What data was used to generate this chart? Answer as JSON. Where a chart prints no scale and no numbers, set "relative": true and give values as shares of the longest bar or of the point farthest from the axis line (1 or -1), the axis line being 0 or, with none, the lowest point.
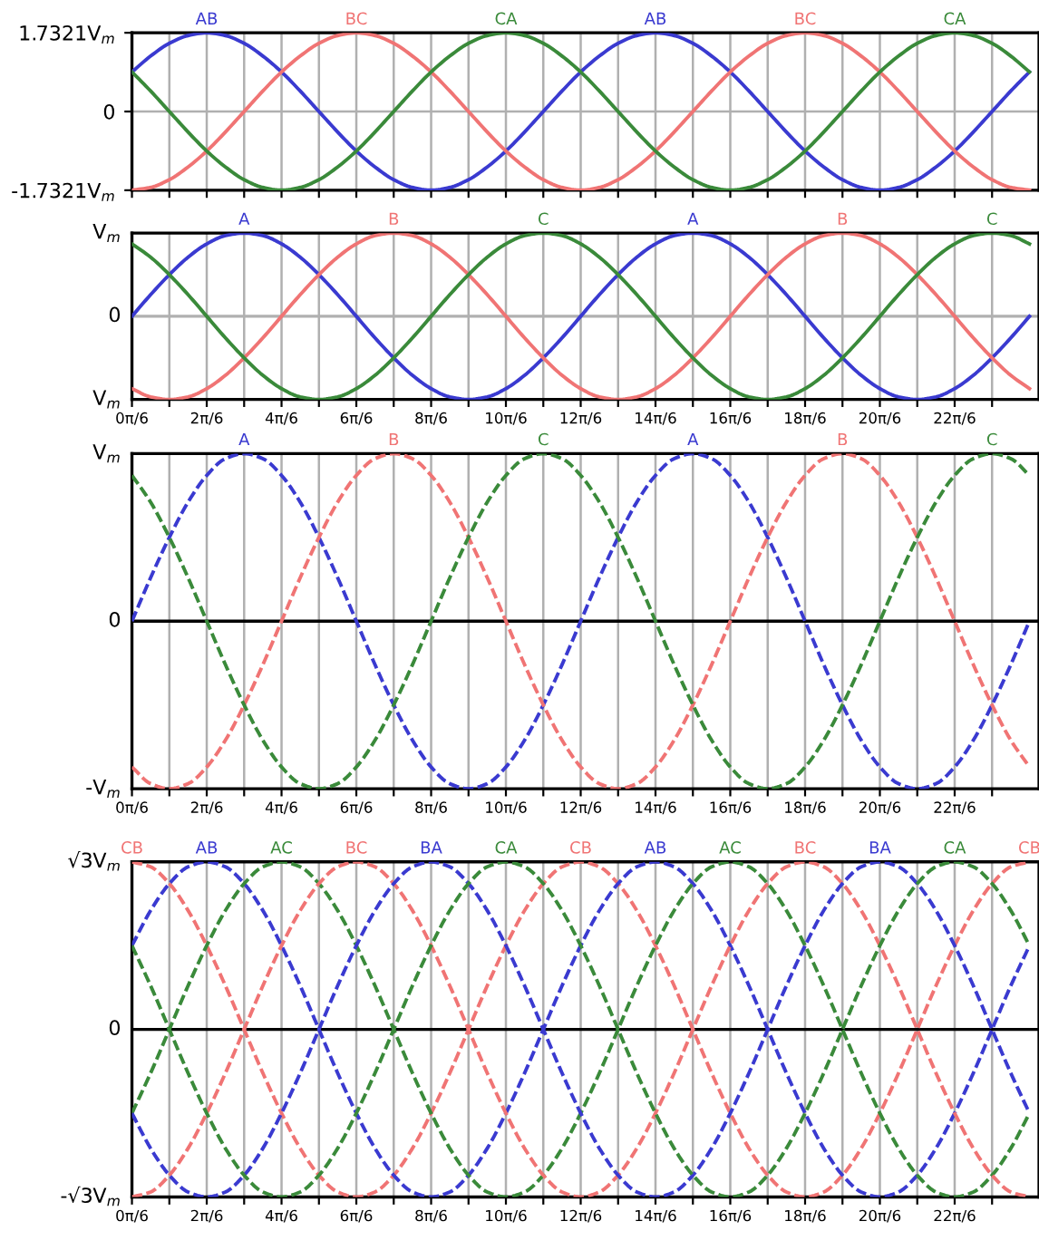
{
  "chart_data": [
    {
      "type": "line",
      "line_style": "solid",
      "grid": true,
      "tick_labels": "y",
      "x": [
        0,
        0.2618,
        0.5236,
        0.7854,
        1.0472,
        1.309,
        1.5708,
        1.8326,
        2.0944,
        2.3562,
        2.618,
        2.8798,
        3.1416,
        3.4034,
        3.6652,
        3.927,
        4.1888,
        4.4506,
        4.7124,
        4.9742,
        5.236,
        5.4978,
        5.7596,
        6.0214,
        6.2832,
        6.545,
        6.8068,
        7.0686,
        7.3304,
        7.5922,
        7.854,
        8.1158,
        8.3776,
        8.6394,
        8.9012,
        9.163,
        9.4248,
        9.6866,
        9.9484,
        10.2102,
        10.472,
        10.7338,
        10.9956,
        11.2574,
        11.5192,
        11.781,
        12.0428,
        12.3046,
        12.5664
      ],
      "xlim": [
        0,
        12.7
      ],
      "ylim": [
        -1.7321,
        1.7321
      ],
      "xticks": [
        {
          "value": 0,
          "label": null
        },
        {
          "value": 0.5236,
          "label": null
        },
        {
          "value": 1.0472,
          "label": null
        },
        {
          "value": 1.5708,
          "label": null
        },
        {
          "value": 2.0944,
          "label": null
        },
        {
          "value": 2.618,
          "label": null
        },
        {
          "value": 3.1416,
          "label": null
        },
        {
          "value": 3.6652,
          "label": null
        },
        {
          "value": 4.1888,
          "label": null
        },
        {
          "value": 4.7124,
          "label": null
        },
        {
          "value": 5.236,
          "label": null
        },
        {
          "value": 5.7596,
          "label": null
        },
        {
          "value": 6.2832,
          "label": null
        },
        {
          "value": 6.8068,
          "label": null
        },
        {
          "value": 7.3304,
          "label": null
        },
        {
          "value": 7.854,
          "label": null
        },
        {
          "value": 8.3776,
          "label": null
        },
        {
          "value": 8.9012,
          "label": null
        },
        {
          "value": 9.4248,
          "label": null
        },
        {
          "value": 9.9484,
          "label": null
        },
        {
          "value": 10.472,
          "label": null
        },
        {
          "value": 10.9956,
          "label": null
        },
        {
          "value": 11.5192,
          "label": null
        },
        {
          "value": 12.0428,
          "label": null
        }
      ],
      "yticks": [
        {
          "value": -1.7321,
          "label": "-1.7321V$_{m}$"
        },
        0,
        {
          "value": 1.7321,
          "label": "1.7321V$_{m}$"
        }
      ],
      "series": [
        {
          "name": "AB",
          "color": "#3a3ad0",
          "values": [
            0.87,
            1.22,
            1.5,
            1.67,
            1.73,
            1.67,
            1.5,
            1.22,
            0.87,
            0.45,
            0,
            -0.45,
            -0.87,
            -1.22,
            -1.5,
            -1.67,
            -1.73,
            -1.67,
            -1.5,
            -1.22,
            -0.87,
            -0.45,
            0,
            0.45,
            0.87,
            1.22,
            1.5,
            1.67,
            1.73,
            1.67,
            1.5,
            1.22,
            0.87,
            0.45,
            0,
            -0.45,
            -0.87,
            -1.22,
            -1.5,
            -1.67,
            -1.73,
            -1.67,
            -1.5,
            -1.22,
            -0.87,
            -0.45,
            0,
            0.45,
            0.87
          ]
        },
        {
          "name": "BC",
          "color": "#f07474",
          "values": [
            -1.73,
            -1.67,
            -1.5,
            -1.22,
            -0.87,
            -0.45,
            0,
            0.45,
            0.87,
            1.22,
            1.5,
            1.67,
            1.73,
            1.67,
            1.5,
            1.22,
            0.87,
            0.45,
            0,
            -0.45,
            -0.87,
            -1.22,
            -1.5,
            -1.67,
            -1.73,
            -1.67,
            -1.5,
            -1.22,
            -0.87,
            -0.45,
            0,
            0.45,
            0.87,
            1.22,
            1.5,
            1.67,
            1.73,
            1.67,
            1.5,
            1.22,
            0.87,
            0.45,
            0,
            -0.45,
            -0.87,
            -1.22,
            -1.5,
            -1.67,
            -1.73
          ]
        },
        {
          "name": "CA",
          "color": "#3a8a3a",
          "values": [
            0.87,
            0.45,
            0,
            -0.45,
            -0.87,
            -1.22,
            -1.5,
            -1.67,
            -1.73,
            -1.67,
            -1.5,
            -1.22,
            -0.87,
            -0.45,
            0,
            0.45,
            0.87,
            1.22,
            1.5,
            1.67,
            1.73,
            1.67,
            1.5,
            1.22,
            0.87,
            0.45,
            0,
            -0.45,
            -0.87,
            -1.22,
            -1.5,
            -1.67,
            -1.73,
            -1.67,
            -1.5,
            -1.22,
            -0.87,
            -0.45,
            0,
            0.45,
            0.87,
            1.22,
            1.5,
            1.67,
            1.73,
            1.67,
            1.5,
            1.22,
            0.87
          ]
        }
      ]
    },
    {
      "type": "line",
      "line_style": "solid",
      "grid": "x",
      "relative": true,
      "annotations": [
        "V$_{m}$",
        "0",
        "V$_{m}$"
      ],
      "x": [
        0,
        0.2618,
        0.5236,
        0.7854,
        1.0472,
        1.309,
        1.5708,
        1.8326,
        2.0944,
        2.3562,
        2.618,
        2.8798,
        3.1416,
        3.4034,
        3.6652,
        3.927,
        4.1888,
        4.4506,
        4.7124,
        4.9742,
        5.236,
        5.4978,
        5.7596,
        6.0214,
        6.2832,
        6.545,
        6.8068,
        7.0686,
        7.3304,
        7.5922,
        7.854,
        8.1158,
        8.3776,
        8.6394,
        8.9012,
        9.163,
        9.4248,
        9.6866,
        9.9484,
        10.2102,
        10.472,
        10.7338,
        10.9956,
        11.2574,
        11.5192,
        11.781,
        12.0428,
        12.3046,
        12.5664
      ],
      "xlim": [
        0,
        12.7
      ],
      "xticks": [
        {
          "value": 0,
          "label": "0π/6"
        },
        {
          "value": 0.5236,
          "label": null
        },
        {
          "value": 1.0472,
          "label": "2π/6"
        },
        {
          "value": 1.5708,
          "label": null
        },
        {
          "value": 2.0944,
          "label": "4π/6"
        },
        {
          "value": 2.618,
          "label": null
        },
        {
          "value": 3.1416,
          "label": "6π/6"
        },
        {
          "value": 3.6652,
          "label": null
        },
        {
          "value": 4.1888,
          "label": "8π/6"
        },
        {
          "value": 4.7124,
          "label": null
        },
        {
          "value": 5.236,
          "label": "10π/6"
        },
        {
          "value": 5.7596,
          "label": null
        },
        {
          "value": 6.2832,
          "label": "12π/6"
        },
        {
          "value": 6.8068,
          "label": null
        },
        {
          "value": 7.3304,
          "label": "14π/6"
        },
        {
          "value": 7.854,
          "label": null
        },
        {
          "value": 8.3776,
          "label": "16π/6"
        },
        {
          "value": 8.9012,
          "label": null
        },
        {
          "value": 9.4248,
          "label": "18π/6"
        },
        {
          "value": 9.9484,
          "label": null
        },
        {
          "value": 10.472,
          "label": "20π/6"
        },
        {
          "value": 10.9956,
          "label": null
        },
        {
          "value": 11.5192,
          "label": "22π/6"
        },
        {
          "value": 12.0428,
          "label": null
        }
      ],
      "ref_lines": [
        {
          "axis": "y",
          "value": 0,
          "color": "#b0b0b0"
        }
      ],
      "series": [
        {
          "name": "A",
          "color": "#3a3ad0",
          "values": [
            0,
            0.26,
            0.5,
            0.71,
            0.87,
            0.97,
            1,
            0.97,
            0.87,
            0.71,
            0.5,
            0.26,
            0,
            -0.26,
            -0.5,
            -0.71,
            -0.87,
            -0.97,
            -1,
            -0.97,
            -0.87,
            -0.71,
            -0.5,
            -0.26,
            0,
            0.26,
            0.5,
            0.71,
            0.87,
            0.97,
            1,
            0.97,
            0.87,
            0.71,
            0.5,
            0.26,
            0,
            -0.26,
            -0.5,
            -0.71,
            -0.87,
            -0.97,
            -1,
            -0.97,
            -0.87,
            -0.71,
            -0.5,
            -0.26,
            0
          ]
        },
        {
          "name": "B",
          "color": "#f07474",
          "values": [
            -0.87,
            -0.97,
            -1,
            -0.97,
            -0.87,
            -0.71,
            -0.5,
            -0.26,
            0,
            0.26,
            0.5,
            0.71,
            0.87,
            0.97,
            1,
            0.97,
            0.87,
            0.71,
            0.5,
            0.26,
            0,
            -0.26,
            -0.5,
            -0.71,
            -0.87,
            -0.97,
            -1,
            -0.97,
            -0.87,
            -0.71,
            -0.5,
            -0.26,
            0,
            0.26,
            0.5,
            0.71,
            0.87,
            0.97,
            1,
            0.97,
            0.87,
            0.71,
            0.5,
            0.26,
            0,
            -0.26,
            -0.5,
            -0.71,
            -0.87
          ]
        },
        {
          "name": "C",
          "color": "#3a8a3a",
          "values": [
            0.87,
            0.71,
            0.5,
            0.26,
            0,
            -0.26,
            -0.5,
            -0.71,
            -0.87,
            -0.97,
            -1,
            -0.97,
            -0.87,
            -0.71,
            -0.5,
            -0.26,
            0,
            0.26,
            0.5,
            0.71,
            0.87,
            0.97,
            1,
            0.97,
            0.87,
            0.71,
            0.5,
            0.26,
            0,
            -0.26,
            -0.5,
            -0.71,
            -0.87,
            -0.97,
            -1,
            -0.97,
            -0.87,
            -0.71,
            -0.5,
            -0.26,
            0,
            0.26,
            0.5,
            0.71,
            0.87,
            0.97,
            1,
            0.97,
            0.87
          ]
        }
      ]
    },
    {
      "type": "line",
      "line_style": "dashed",
      "grid": "x",
      "relative": true,
      "annotations": [
        "V$_{m}$",
        "0",
        "-V$_{m}$"
      ],
      "x": [
        0,
        0.2618,
        0.5236,
        0.7854,
        1.0472,
        1.309,
        1.5708,
        1.8326,
        2.0944,
        2.3562,
        2.618,
        2.8798,
        3.1416,
        3.4034,
        3.6652,
        3.927,
        4.1888,
        4.4506,
        4.7124,
        4.9742,
        5.236,
        5.4978,
        5.7596,
        6.0214,
        6.2832,
        6.545,
        6.8068,
        7.0686,
        7.3304,
        7.5922,
        7.854,
        8.1158,
        8.3776,
        8.6394,
        8.9012,
        9.163,
        9.4248,
        9.6866,
        9.9484,
        10.2102,
        10.472,
        10.7338,
        10.9956,
        11.2574,
        11.5192,
        11.781,
        12.0428,
        12.3046,
        12.5664
      ],
      "xlim": [
        0,
        12.7
      ],
      "xticks": [
        {
          "value": 0,
          "label": "0π/6"
        },
        {
          "value": 0.5236,
          "label": null
        },
        {
          "value": 1.0472,
          "label": "2π/6"
        },
        {
          "value": 1.5708,
          "label": null
        },
        {
          "value": 2.0944,
          "label": "4π/6"
        },
        {
          "value": 2.618,
          "label": null
        },
        {
          "value": 3.1416,
          "label": "6π/6"
        },
        {
          "value": 3.6652,
          "label": null
        },
        {
          "value": 4.1888,
          "label": "8π/6"
        },
        {
          "value": 4.7124,
          "label": null
        },
        {
          "value": 5.236,
          "label": "10π/6"
        },
        {
          "value": 5.7596,
          "label": null
        },
        {
          "value": 6.2832,
          "label": "12π/6"
        },
        {
          "value": 6.8068,
          "label": null
        },
        {
          "value": 7.3304,
          "label": "14π/6"
        },
        {
          "value": 7.854,
          "label": null
        },
        {
          "value": 8.3776,
          "label": "16π/6"
        },
        {
          "value": 8.9012,
          "label": null
        },
        {
          "value": 9.4248,
          "label": "18π/6"
        },
        {
          "value": 9.9484,
          "label": null
        },
        {
          "value": 10.472,
          "label": "20π/6"
        },
        {
          "value": 10.9956,
          "label": null
        },
        {
          "value": 11.5192,
          "label": "22π/6"
        },
        {
          "value": 12.0428,
          "label": null
        }
      ],
      "ref_lines": [
        {
          "axis": "y",
          "value": 0,
          "color": "#000000"
        }
      ],
      "series": [
        {
          "name": "A",
          "color": "#3a3ad0",
          "values": [
            0,
            0.26,
            0.5,
            0.71,
            0.87,
            0.97,
            1,
            0.97,
            0.87,
            0.71,
            0.5,
            0.26,
            0,
            -0.26,
            -0.5,
            -0.71,
            -0.87,
            -0.97,
            -1,
            -0.97,
            -0.87,
            -0.71,
            -0.5,
            -0.26,
            0,
            0.26,
            0.5,
            0.71,
            0.87,
            0.97,
            1,
            0.97,
            0.87,
            0.71,
            0.5,
            0.26,
            0,
            -0.26,
            -0.5,
            -0.71,
            -0.87,
            -0.97,
            -1,
            -0.97,
            -0.87,
            -0.71,
            -0.5,
            -0.26,
            0
          ]
        },
        {
          "name": "B",
          "color": "#f07474",
          "values": [
            -0.87,
            -0.97,
            -1,
            -0.97,
            -0.87,
            -0.71,
            -0.5,
            -0.26,
            0,
            0.26,
            0.5,
            0.71,
            0.87,
            0.97,
            1,
            0.97,
            0.87,
            0.71,
            0.5,
            0.26,
            0,
            -0.26,
            -0.5,
            -0.71,
            -0.87,
            -0.97,
            -1,
            -0.97,
            -0.87,
            -0.71,
            -0.5,
            -0.26,
            0,
            0.26,
            0.5,
            0.71,
            0.87,
            0.97,
            1,
            0.97,
            0.87,
            0.71,
            0.5,
            0.26,
            0,
            -0.26,
            -0.5,
            -0.71,
            -0.87
          ]
        },
        {
          "name": "C",
          "color": "#3a8a3a",
          "values": [
            0.87,
            0.71,
            0.5,
            0.26,
            0,
            -0.26,
            -0.5,
            -0.71,
            -0.87,
            -0.97,
            -1,
            -0.97,
            -0.87,
            -0.71,
            -0.5,
            -0.26,
            0,
            0.26,
            0.5,
            0.71,
            0.87,
            0.97,
            1,
            0.97,
            0.87,
            0.71,
            0.5,
            0.26,
            0,
            -0.26,
            -0.5,
            -0.71,
            -0.87,
            -0.97,
            -1,
            -0.97,
            -0.87,
            -0.71,
            -0.5,
            -0.26,
            0,
            0.26,
            0.5,
            0.71,
            0.87,
            0.97,
            1,
            0.97,
            0.87
          ]
        }
      ]
    },
    {
      "type": "line",
      "line_style": "dashed",
      "grid": "x",
      "relative": true,
      "annotations": [
        "√3V$_{m}$",
        "0",
        "-√3V$_{m}$"
      ],
      "x": [
        0,
        0.2618,
        0.5236,
        0.7854,
        1.0472,
        1.309,
        1.5708,
        1.8326,
        2.0944,
        2.3562,
        2.618,
        2.8798,
        3.1416,
        3.4034,
        3.6652,
        3.927,
        4.1888,
        4.4506,
        4.7124,
        4.9742,
        5.236,
        5.4978,
        5.7596,
        6.0214,
        6.2832,
        6.545,
        6.8068,
        7.0686,
        7.3304,
        7.5922,
        7.854,
        8.1158,
        8.3776,
        8.6394,
        8.9012,
        9.163,
        9.4248,
        9.6866,
        9.9484,
        10.2102,
        10.472,
        10.7338,
        10.9956,
        11.2574,
        11.5192,
        11.781,
        12.0428,
        12.3046,
        12.5664
      ],
      "xlim": [
        0,
        12.7
      ],
      "xticks": [
        {
          "value": 0,
          "label": "0π/6"
        },
        {
          "value": 0.5236,
          "label": null
        },
        {
          "value": 1.0472,
          "label": "2π/6"
        },
        {
          "value": 1.5708,
          "label": null
        },
        {
          "value": 2.0944,
          "label": "4π/6"
        },
        {
          "value": 2.618,
          "label": null
        },
        {
          "value": 3.1416,
          "label": "6π/6"
        },
        {
          "value": 3.6652,
          "label": null
        },
        {
          "value": 4.1888,
          "label": "8π/6"
        },
        {
          "value": 4.7124,
          "label": null
        },
        {
          "value": 5.236,
          "label": "10π/6"
        },
        {
          "value": 5.7596,
          "label": null
        },
        {
          "value": 6.2832,
          "label": "12π/6"
        },
        {
          "value": 6.8068,
          "label": null
        },
        {
          "value": 7.3304,
          "label": "14π/6"
        },
        {
          "value": 7.854,
          "label": null
        },
        {
          "value": 8.3776,
          "label": "16π/6"
        },
        {
          "value": 8.9012,
          "label": null
        },
        {
          "value": 9.4248,
          "label": "18π/6"
        },
        {
          "value": 9.9484,
          "label": null
        },
        {
          "value": 10.472,
          "label": "20π/6"
        },
        {
          "value": 10.9956,
          "label": null
        },
        {
          "value": 11.5192,
          "label": "22π/6"
        },
        {
          "value": 12.0428,
          "label": null
        }
      ],
      "ref_lines": [
        {
          "axis": "y",
          "value": 0,
          "color": "#000000"
        }
      ],
      "series": [
        {
          "name": "CB",
          "color": "#f07474",
          "values": [
            1,
            0.97,
            0.87,
            0.71,
            0.5,
            0.26,
            0,
            -0.26,
            -0.5,
            -0.71,
            -0.87,
            -0.97,
            -1,
            -0.97,
            -0.87,
            -0.71,
            -0.5,
            -0.26,
            0,
            0.26,
            0.5,
            0.71,
            0.87,
            0.97,
            1,
            0.97,
            0.87,
            0.71,
            0.5,
            0.26,
            0,
            -0.26,
            -0.5,
            -0.71,
            -0.87,
            -0.97,
            -1,
            -0.97,
            -0.87,
            -0.71,
            -0.5,
            -0.26,
            0,
            0.26,
            0.5,
            0.71,
            0.87,
            0.97,
            1
          ]
        },
        {
          "name": "AB",
          "color": "#3a3ad0",
          "values": [
            0.5,
            0.71,
            0.87,
            0.97,
            1,
            0.97,
            0.87,
            0.71,
            0.5,
            0.26,
            0,
            -0.26,
            -0.5,
            -0.71,
            -0.87,
            -0.97,
            -1,
            -0.97,
            -0.87,
            -0.71,
            -0.5,
            -0.26,
            0,
            0.26,
            0.5,
            0.71,
            0.87,
            0.97,
            1,
            0.97,
            0.87,
            0.71,
            0.5,
            0.26,
            0,
            -0.26,
            -0.5,
            -0.71,
            -0.87,
            -0.97,
            -1,
            -0.97,
            -0.87,
            -0.71,
            -0.5,
            -0.26,
            0,
            0.26,
            0.5
          ]
        },
        {
          "name": "AC",
          "color": "#3a8a3a",
          "values": [
            -0.5,
            -0.26,
            0,
            0.26,
            0.5,
            0.71,
            0.87,
            0.97,
            1,
            0.97,
            0.87,
            0.71,
            0.5,
            0.26,
            0,
            -0.26,
            -0.5,
            -0.71,
            -0.87,
            -0.97,
            -1,
            -0.97,
            -0.87,
            -0.71,
            -0.5,
            -0.26,
            0,
            0.26,
            0.5,
            0.71,
            0.87,
            0.97,
            1,
            0.97,
            0.87,
            0.71,
            0.5,
            0.26,
            0,
            -0.26,
            -0.5,
            -0.71,
            -0.87,
            -0.97,
            -1,
            -0.97,
            -0.87,
            -0.71,
            -0.5
          ]
        },
        {
          "name": "BC",
          "color": "#f07474",
          "values": [
            -1,
            -0.97,
            -0.87,
            -0.71,
            -0.5,
            -0.26,
            0,
            0.26,
            0.5,
            0.71,
            0.87,
            0.97,
            1,
            0.97,
            0.87,
            0.71,
            0.5,
            0.26,
            0,
            -0.26,
            -0.5,
            -0.71,
            -0.87,
            -0.97,
            -1,
            -0.97,
            -0.87,
            -0.71,
            -0.5,
            -0.26,
            0,
            0.26,
            0.5,
            0.71,
            0.87,
            0.97,
            1,
            0.97,
            0.87,
            0.71,
            0.5,
            0.26,
            0,
            -0.26,
            -0.5,
            -0.71,
            -0.87,
            -0.97,
            -1
          ]
        },
        {
          "name": "BA",
          "color": "#3a3ad0",
          "values": [
            -0.5,
            -0.71,
            -0.87,
            -0.97,
            -1,
            -0.97,
            -0.87,
            -0.71,
            -0.5,
            -0.26,
            0,
            0.26,
            0.5,
            0.71,
            0.87,
            0.97,
            1,
            0.97,
            0.87,
            0.71,
            0.5,
            0.26,
            0,
            -0.26,
            -0.5,
            -0.71,
            -0.87,
            -0.97,
            -1,
            -0.97,
            -0.87,
            -0.71,
            -0.5,
            -0.26,
            0,
            0.26,
            0.5,
            0.71,
            0.87,
            0.97,
            1,
            0.97,
            0.87,
            0.71,
            0.5,
            0.26,
            0,
            -0.26,
            -0.5
          ]
        },
        {
          "name": "CA",
          "color": "#3a8a3a",
          "values": [
            0.5,
            0.26,
            0,
            -0.26,
            -0.5,
            -0.71,
            -0.87,
            -0.97,
            -1,
            -0.97,
            -0.87,
            -0.71,
            -0.5,
            -0.26,
            0,
            0.26,
            0.5,
            0.71,
            0.87,
            0.97,
            1,
            0.97,
            0.87,
            0.71,
            0.5,
            0.26,
            0,
            -0.26,
            -0.5,
            -0.71,
            -0.87,
            -0.97,
            -1,
            -0.97,
            -0.87,
            -0.71,
            -0.5,
            -0.26,
            0,
            0.26,
            0.5,
            0.71,
            0.87,
            0.97,
            1,
            0.97,
            0.87,
            0.71,
            0.5
          ]
        }
      ]
    }
  ]
}
